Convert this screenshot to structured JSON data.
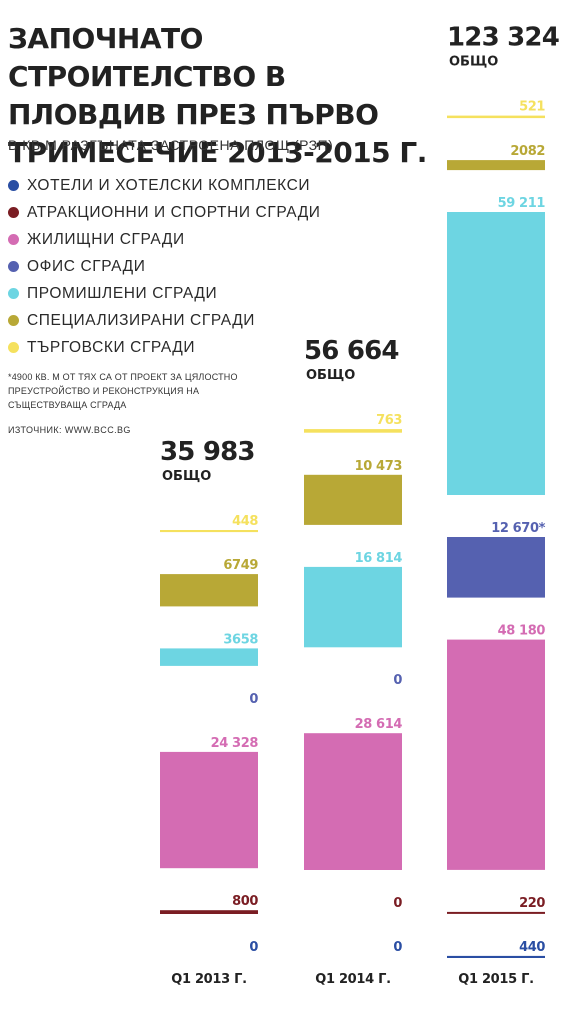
{
  "title": "ЗАПОЧНАТО СТРОИТЕЛСТВО В ПЛОВДИВ ПРЕЗ ПЪРВО ТРИМЕСЕЧИЕ 2013-2015 Г.",
  "subtitle": "В КВ.М РАЗГЪНАТА ЗАСТРОЕНА ПЛОЩ (РЗП)",
  "footnote": "*4900 КВ. М ОТ ТЯХ СА ОТ ПРОЕКТ ЗА ЦЯЛОСТНО ПРЕУСТРОЙСТВО И РЕКОНСТРУКЦИЯ НА СЪЩЕСТВУВАЩА СГРАДА",
  "source": "ИЗТОЧНИК: WWW.BCC.BG",
  "total_label": "ОБЩО",
  "chart_data": {
    "type": "bar",
    "stacked": true,
    "categories": [
      "Q1 2013 Г.",
      "Q1 2014 Г.",
      "Q1 2015 Г."
    ],
    "totals": [
      35983,
      56664,
      123324
    ],
    "total_labels": [
      "35 983",
      "56 664",
      "123 324"
    ],
    "series": [
      {
        "name": "ХОТЕЛИ И ХОТЕЛСКИ КОМПЛЕКСИ",
        "color": "#2a4ea3",
        "values": [
          0,
          0,
          440
        ],
        "labels": [
          "0",
          "0",
          "440"
        ]
      },
      {
        "name": "АТРАКЦИОННИ И СПОРТНИ СГРАДИ",
        "color": "#7a1d23",
        "values": [
          800,
          0,
          220
        ],
        "labels": [
          "800",
          "0",
          "220"
        ]
      },
      {
        "name": "ЖИЛИЩНИ СГРАДИ",
        "color": "#d46cb3",
        "values": [
          24328,
          28614,
          48180
        ],
        "labels": [
          "24 328",
          "28 614",
          "48 180"
        ]
      },
      {
        "name": "ОФИС СГРАДИ",
        "color": "#5561b0",
        "values": [
          0,
          0,
          12670
        ],
        "labels": [
          "0",
          "0",
          "12 670*"
        ]
      },
      {
        "name": "ПРОМИШЛЕНИ СГРАДИ",
        "color": "#6dd5e2",
        "values": [
          3658,
          16814,
          59211
        ],
        "labels": [
          "3658",
          "16 814",
          "59 211"
        ]
      },
      {
        "name": "СПЕЦИАЛИЗИРАНИ СГРАДИ",
        "color": "#b8a836",
        "values": [
          6749,
          10473,
          2082
        ],
        "labels": [
          "6749",
          "10 473",
          "2082"
        ]
      },
      {
        "name": "ТЪРГОВСКИ СГРАДИ",
        "color": "#f5e15e",
        "values": [
          448,
          763,
          521
        ],
        "labels": [
          "448",
          "763",
          "521"
        ]
      }
    ],
    "legend_order": [
      0,
      1,
      2,
      3,
      4,
      5,
      6
    ],
    "legend_position": "top-left"
  }
}
